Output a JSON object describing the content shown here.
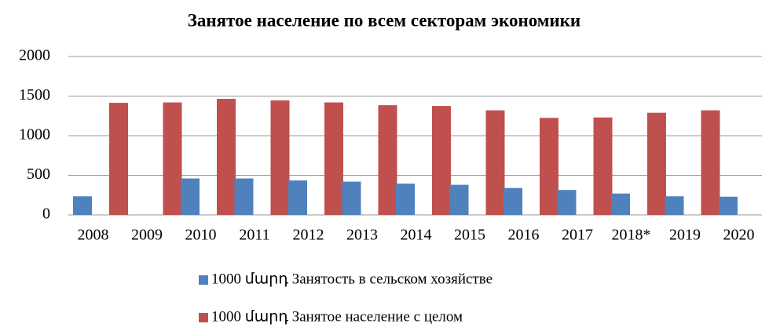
{
  "chart_data": {
    "type": "bar",
    "title": "Занятое население по всем секторам экономики",
    "categories": [
      "2008",
      "2009",
      "2010",
      "2011",
      "2012",
      "2013",
      "2014",
      "2015",
      "2016",
      "2017",
      "2018*",
      "2019",
      "2020"
    ],
    "series": [
      {
        "name": "1000 մարդ Занятость в сельском хозяйстве",
        "color": "#4f81bd",
        "values": [
          235,
          null,
          460,
          460,
          435,
          420,
          395,
          380,
          340,
          315,
          270,
          235,
          230
        ]
      },
      {
        "name": "1000 մարդ Занятое население с целом",
        "color": "#c0504d",
        "values": [
          1415,
          1420,
          1465,
          1445,
          1420,
          1385,
          1375,
          1320,
          1225,
          1230,
          1290,
          1320,
          null
        ]
      }
    ],
    "ylim": [
      0,
      2000
    ],
    "yticks": [
      0,
      500,
      1000,
      1500,
      2000
    ],
    "grid": true,
    "legend": "bottom"
  }
}
